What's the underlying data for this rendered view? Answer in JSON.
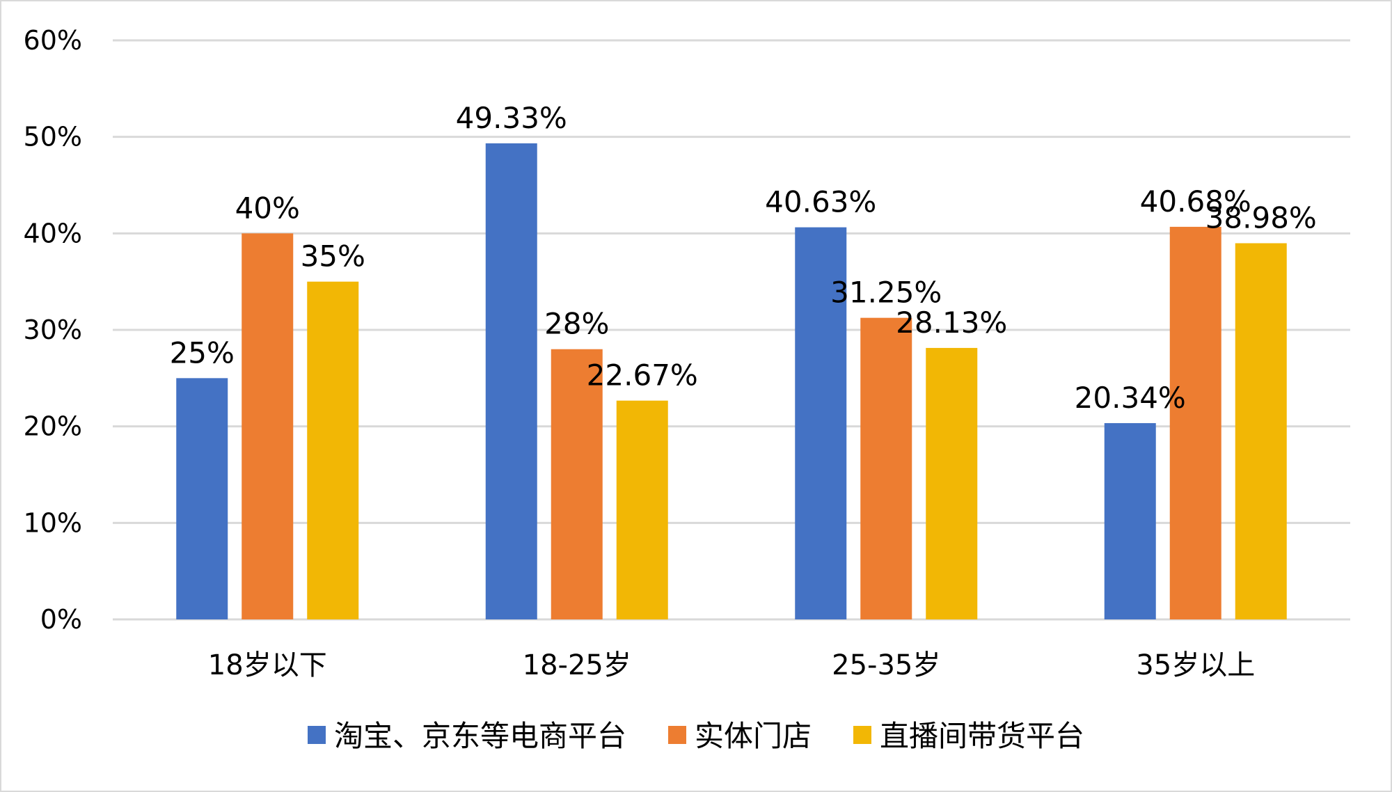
{
  "chart_data": {
    "type": "bar",
    "categories": [
      "18岁以下",
      "18-25岁",
      "25-35岁",
      "35岁以上"
    ],
    "series": [
      {
        "name": "淘宝、京东等电商平台",
        "color": "#4472c4",
        "values": [
          25,
          49.33,
          40.63,
          20.34
        ],
        "labels": [
          "25%",
          "49.33%",
          "40.63%",
          "20.34%"
        ]
      },
      {
        "name": "实体门店",
        "color": "#ed7d31",
        "values": [
          40,
          28,
          31.25,
          40.68
        ],
        "labels": [
          "40%",
          "28%",
          "31.25%",
          "40.68%"
        ]
      },
      {
        "name": "直播间带货平台",
        "color": "#f2b705",
        "values": [
          35,
          22.67,
          28.13,
          38.98
        ],
        "labels": [
          "35%",
          "22.67%",
          "28.13%",
          "38.98%"
        ]
      }
    ],
    "ylim": [
      0,
      60
    ],
    "yticks": [
      0,
      10,
      20,
      30,
      40,
      50,
      60
    ],
    "ytick_labels": [
      "0%",
      "10%",
      "20%",
      "30%",
      "40%",
      "50%",
      "60%"
    ],
    "grid": true,
    "legend_position": "bottom"
  }
}
